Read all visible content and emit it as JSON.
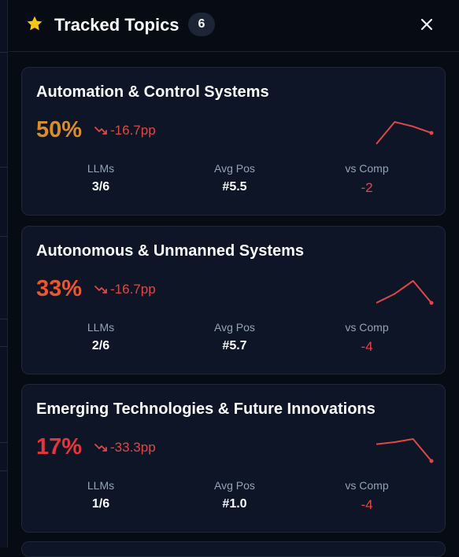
{
  "header": {
    "title": "Tracked Topics",
    "count": "6"
  },
  "colors": {
    "orange": "#d98c2b",
    "redorange": "#f0562c",
    "red": "#e8333c",
    "negative": "#ef4444",
    "spark": "#e04848"
  },
  "topics": [
    {
      "name": "Automation & Control Systems",
      "pct": "50%",
      "pct_color": "#d98c2b",
      "delta": "-16.7pp",
      "llms_label": "LLMs",
      "llms": "3/6",
      "avgpos_label": "Avg Pos",
      "avgpos": "#5.5",
      "vscomp_label": "vs Comp",
      "vscomp": "-2",
      "trend": [
        33,
        67,
        60,
        50
      ]
    },
    {
      "name": "Autonomous & Unmanned Systems",
      "pct": "33%",
      "pct_color": "#f0562c",
      "delta": "-16.7pp",
      "llms_label": "LLMs",
      "llms": "2/6",
      "avgpos_label": "Avg Pos",
      "avgpos": "#5.7",
      "vscomp_label": "vs Comp",
      "vscomp": "-4",
      "trend": [
        33,
        40,
        50,
        33
      ]
    },
    {
      "name": "Emerging Technologies & Future Innovations",
      "pct": "17%",
      "pct_color": "#e8333c",
      "delta": "-33.3pp",
      "llms_label": "LLMs",
      "llms": "1/6",
      "avgpos_label": "Avg Pos",
      "avgpos": "#1.0",
      "vscomp_label": "vs Comp",
      "vscomp": "-4",
      "trend": [
        33,
        35,
        38,
        17
      ]
    }
  ]
}
